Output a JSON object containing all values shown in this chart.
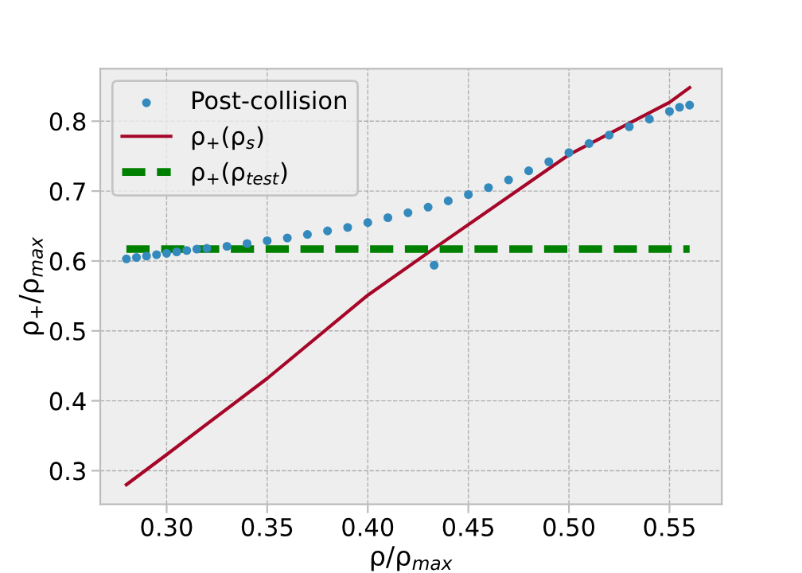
{
  "chart_data": {
    "type": "scatter",
    "xlabel": "ρ/ρ$_{max}$",
    "ylabel": "ρ$_{+}$/ρ$_{max}$",
    "xlim": [
      0.267,
      0.576
    ],
    "ylim": [
      0.252,
      0.875
    ],
    "xticks": [
      {
        "value": 0.3,
        "label": "0.30"
      },
      0.35,
      {
        "value": 0.4,
        "label": "0.40"
      },
      0.45,
      {
        "value": 0.5,
        "label": "0.50"
      },
      0.55
    ],
    "yticks": [
      0.3,
      0.4,
      0.5,
      0.6,
      0.7,
      0.8
    ],
    "grid": true,
    "legend": "top left",
    "series": [
      {
        "name": "Post-collision",
        "marker": "circle",
        "color": "#348abd",
        "x": [
          0.28,
          0.285,
          0.29,
          0.295,
          0.3,
          0.305,
          0.31,
          0.315,
          0.32,
          0.33,
          0.34,
          0.35,
          0.36,
          0.37,
          0.38,
          0.39,
          0.4,
          0.41,
          0.42,
          0.43,
          0.433,
          0.44,
          0.45,
          0.46,
          0.47,
          0.48,
          0.49,
          0.5,
          0.51,
          0.52,
          0.53,
          0.54,
          0.55,
          0.555,
          0.56
        ],
        "values": [
          0.603,
          0.605,
          0.607,
          0.609,
          0.611,
          0.613,
          0.615,
          0.617,
          0.618,
          0.621,
          0.625,
          0.629,
          0.633,
          0.638,
          0.643,
          0.648,
          0.655,
          0.662,
          0.669,
          0.677,
          0.594,
          0.686,
          0.695,
          0.705,
          0.716,
          0.729,
          0.742,
          0.755,
          0.768,
          0.78,
          0.792,
          0.803,
          0.814,
          0.82,
          0.823
        ]
      },
      {
        "name": "ρ$_{+}$(ρ$_{s}$)",
        "type": "line",
        "line_style": "solid",
        "color": "#a60628",
        "x": [
          0.28,
          0.3,
          0.35,
          0.4,
          0.433,
          0.5,
          0.55,
          0.56
        ],
        "values": [
          0.28,
          0.323,
          0.432,
          0.551,
          0.618,
          0.752,
          0.827,
          0.848
        ]
      },
      {
        "name": "ρ$_{+}$(ρ$_{test}$)",
        "type": "line",
        "line_style": "dashed",
        "color": "#008000",
        "x": [
          0.28,
          0.56
        ],
        "values": [
          0.617,
          0.617
        ]
      }
    ]
  }
}
